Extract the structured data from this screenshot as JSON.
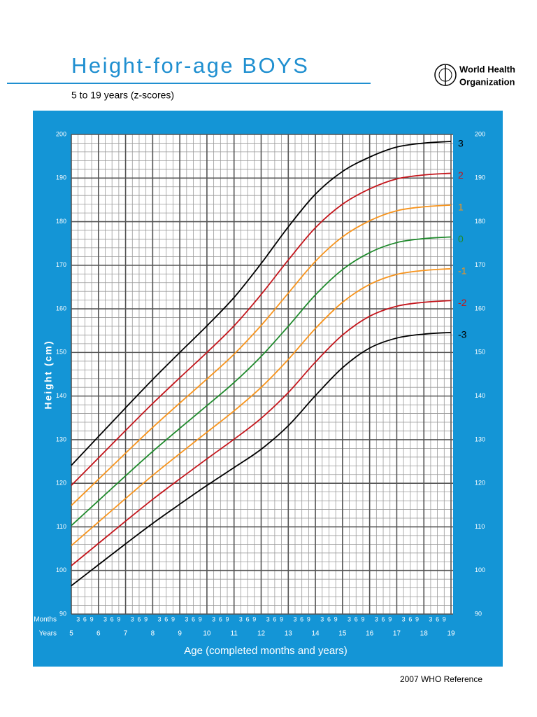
{
  "chart_data": {
    "type": "line",
    "title": "Height-for-age  BOYS",
    "subtitle": "5 to 19 years (z-scores)",
    "organization": [
      "World Health",
      "Organization"
    ],
    "footer": "2007 WHO Reference",
    "x_label": "Age (completed months and years)",
    "y_label": "Height (cm)",
    "months_row_label": "Months",
    "years_row_label": "Years",
    "months_ticks": [
      3,
      6,
      9
    ],
    "x": [
      5,
      6,
      7,
      8,
      9,
      10,
      11,
      12,
      13,
      14,
      15,
      16,
      17,
      18,
      19
    ],
    "xlim": [
      5,
      19
    ],
    "xticks": [
      5,
      6,
      7,
      8,
      9,
      10,
      11,
      12,
      13,
      14,
      15,
      16,
      17,
      18,
      19
    ],
    "ylim": [
      90,
      200
    ],
    "yticks": [
      90,
      100,
      110,
      120,
      130,
      140,
      150,
      160,
      170,
      180,
      190,
      200
    ],
    "grid": true,
    "series": [
      {
        "name": "3",
        "color": "#000000",
        "values": [
          124.1,
          130.7,
          137.3,
          143.8,
          150.0,
          156.1,
          162.6,
          170.4,
          178.8,
          186.3,
          191.5,
          194.8,
          197.1,
          198.0,
          198.4
        ]
      },
      {
        "name": "2",
        "color": "#c4161c",
        "values": [
          119.5,
          125.8,
          132.1,
          138.3,
          144.2,
          150.0,
          156.1,
          163.3,
          171.2,
          178.6,
          184.0,
          187.5,
          189.8,
          190.7,
          191.1
        ]
      },
      {
        "name": "1",
        "color": "#f7941d",
        "values": [
          114.9,
          120.9,
          126.9,
          132.8,
          138.4,
          143.9,
          149.6,
          156.2,
          163.6,
          170.9,
          176.5,
          180.2,
          182.5,
          183.4,
          183.8
        ]
      },
      {
        "name": "0",
        "color": "#1f8a2c",
        "values": [
          110.3,
          116.0,
          121.7,
          127.3,
          132.6,
          137.8,
          143.1,
          149.1,
          156.0,
          163.2,
          169.0,
          172.9,
          175.2,
          176.1,
          176.5
        ]
      },
      {
        "name": "-1",
        "color": "#f7941d",
        "values": [
          105.7,
          111.1,
          116.5,
          121.8,
          126.8,
          131.7,
          136.6,
          142.0,
          148.4,
          155.5,
          161.5,
          165.6,
          167.9,
          168.8,
          169.2
        ]
      },
      {
        "name": "-2",
        "color": "#c4161c",
        "values": [
          101.1,
          106.2,
          111.3,
          116.3,
          121.0,
          125.6,
          130.1,
          134.9,
          140.8,
          147.8,
          154.0,
          158.3,
          160.6,
          161.5,
          161.9
        ]
      },
      {
        "name": "-3",
        "color": "#000000",
        "values": [
          96.5,
          101.3,
          106.1,
          110.8,
          115.2,
          119.5,
          123.6,
          127.8,
          133.2,
          140.1,
          146.5,
          151.0,
          153.3,
          154.2,
          154.6
        ]
      }
    ]
  }
}
